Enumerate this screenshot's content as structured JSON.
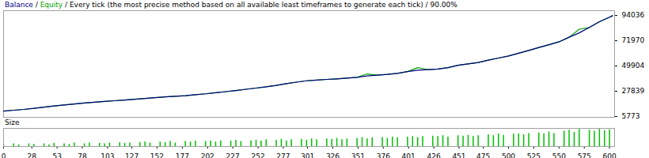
{
  "chart_data": [
    {
      "type": "line",
      "subtitle": "Every tick (the most precise method based on all available least timeframes to generate each tick) / 90.00%",
      "separator": "/",
      "x": [
        0,
        10,
        20,
        30,
        40,
        50,
        60,
        70,
        80,
        90,
        100,
        110,
        120,
        130,
        140,
        150,
        160,
        170,
        180,
        190,
        200,
        210,
        220,
        230,
        240,
        250,
        260,
        270,
        280,
        290,
        300,
        310,
        320,
        330,
        340,
        350,
        360,
        370,
        380,
        390,
        400,
        410,
        420,
        430,
        440,
        450,
        460,
        470,
        480,
        490,
        500,
        510,
        520,
        530,
        540,
        550,
        560,
        570,
        580,
        590,
        600,
        603
      ],
      "series": [
        {
          "name": "Balance",
          "color": "#000080",
          "values": [
            10500,
            11300,
            12000,
            12900,
            14000,
            15000,
            15900,
            16700,
            17600,
            18300,
            19000,
            19600,
            20200,
            20900,
            21600,
            22300,
            22900,
            23400,
            24000,
            24900,
            25600,
            26500,
            27500,
            28500,
            29600,
            30600,
            31700,
            33000,
            34500,
            35800,
            37000,
            37600,
            38200,
            38700,
            39300,
            40000,
            41200,
            41900,
            42600,
            43500,
            45000,
            46200,
            46800,
            47300,
            48500,
            50500,
            51800,
            53000,
            55000,
            56800,
            58600,
            61000,
            63500,
            66000,
            68500,
            71000,
            75000,
            78800,
            83500,
            88500,
            92500,
            93800
          ]
        },
        {
          "name": "Equity",
          "color": "#00a000",
          "values": [
            10500,
            11300,
            12000,
            12900,
            14000,
            15000,
            15900,
            16700,
            17600,
            18300,
            19000,
            19600,
            20200,
            20900,
            21600,
            22300,
            22900,
            23400,
            24000,
            24900,
            25600,
            26500,
            27500,
            28500,
            29600,
            30600,
            31700,
            33000,
            34500,
            35800,
            37000,
            37600,
            38200,
            38700,
            39300,
            40000,
            43000,
            41900,
            42600,
            43500,
            45000,
            48500,
            46800,
            47300,
            48500,
            50500,
            51800,
            53000,
            55000,
            56800,
            58600,
            61000,
            63500,
            66000,
            68500,
            71000,
            75000,
            82000,
            83500,
            88500,
            92500,
            93800
          ]
        }
      ],
      "xlim": [
        0,
        605
      ],
      "ylim": [
        5100,
        98200
      ],
      "yticks": [
        5773,
        27839,
        49904,
        71970,
        94036
      ],
      "tick_labels": "y",
      "grid": false
    },
    {
      "type": "bar",
      "title": "Size",
      "color": "#00c000",
      "x": [
        0,
        5,
        10,
        15,
        20,
        25,
        30,
        35,
        40,
        45,
        50,
        55,
        60,
        65,
        70,
        75,
        80,
        85,
        90,
        95,
        100,
        105,
        110,
        115,
        120,
        125,
        130,
        135,
        140,
        145,
        150,
        155,
        160,
        165,
        170,
        175,
        180,
        185,
        190,
        195,
        200,
        205,
        210,
        215,
        220,
        225,
        230,
        235,
        240,
        245,
        250,
        255,
        260,
        265,
        270,
        275,
        280,
        285,
        290,
        295,
        300,
        305,
        310,
        315,
        320,
        325,
        330,
        335,
        340,
        345,
        350,
        355,
        360,
        365,
        370,
        375,
        380,
        385,
        390,
        395,
        400,
        405,
        410,
        415,
        420,
        425,
        430,
        435,
        440,
        445,
        450,
        455,
        460,
        465,
        470,
        475,
        480,
        485,
        490,
        495,
        500,
        505,
        510,
        515,
        520,
        525,
        530,
        535,
        540,
        545,
        550,
        555,
        560,
        565,
        570,
        575,
        580,
        585,
        590,
        595,
        600
      ],
      "values": [
        0.12,
        0,
        0.15,
        0.1,
        0,
        0.15,
        0.12,
        0,
        0.15,
        0.1,
        0.18,
        0,
        0.15,
        0.12,
        0.2,
        0,
        0.15,
        0.2,
        0,
        0.18,
        0.15,
        0.2,
        0,
        0.22,
        0.18,
        0.2,
        0,
        0.22,
        0.25,
        0.2,
        0,
        0.25,
        0.22,
        0.28,
        0.2,
        0,
        0.28,
        0.25,
        0.3,
        0,
        0.28,
        0.3,
        0.25,
        0.32,
        0,
        0.3,
        0.35,
        0.28,
        0,
        0.32,
        0.35,
        0.3,
        0.38,
        0,
        0.35,
        0.4,
        0.32,
        0.38,
        0,
        0.4,
        0.35,
        0.42,
        0.38,
        0,
        0.42,
        0.4,
        0.45,
        0.38,
        0.42,
        0,
        0.45,
        0.5,
        0.42,
        0.48,
        0,
        0.5,
        0.45,
        0.52,
        0.48,
        0,
        0.52,
        0.55,
        0.5,
        0.55,
        0,
        0.58,
        0.55,
        0.6,
        0.52,
        0,
        0.6,
        0.58,
        0.62,
        0.55,
        0.6,
        0,
        0.65,
        0.6,
        0.7,
        0.62,
        0,
        0.68,
        0.7,
        0.65,
        0.72,
        0,
        0.75,
        0.7,
        0.8,
        0.72,
        0,
        0.85,
        0.9,
        0.78,
        0.95,
        0,
        0.9,
        0.85,
        0.95,
        0.88,
        0.92
      ],
      "xlim": [
        0,
        605
      ],
      "ylim": [
        0,
        1
      ],
      "xticks": [
        0,
        28,
        53,
        78,
        103,
        127,
        152,
        177,
        202,
        227,
        252,
        277,
        301,
        326,
        351,
        376,
        401,
        426,
        451,
        475,
        500,
        525,
        550,
        575,
        600
      ],
      "tick_labels": "x",
      "grid": false
    }
  ]
}
